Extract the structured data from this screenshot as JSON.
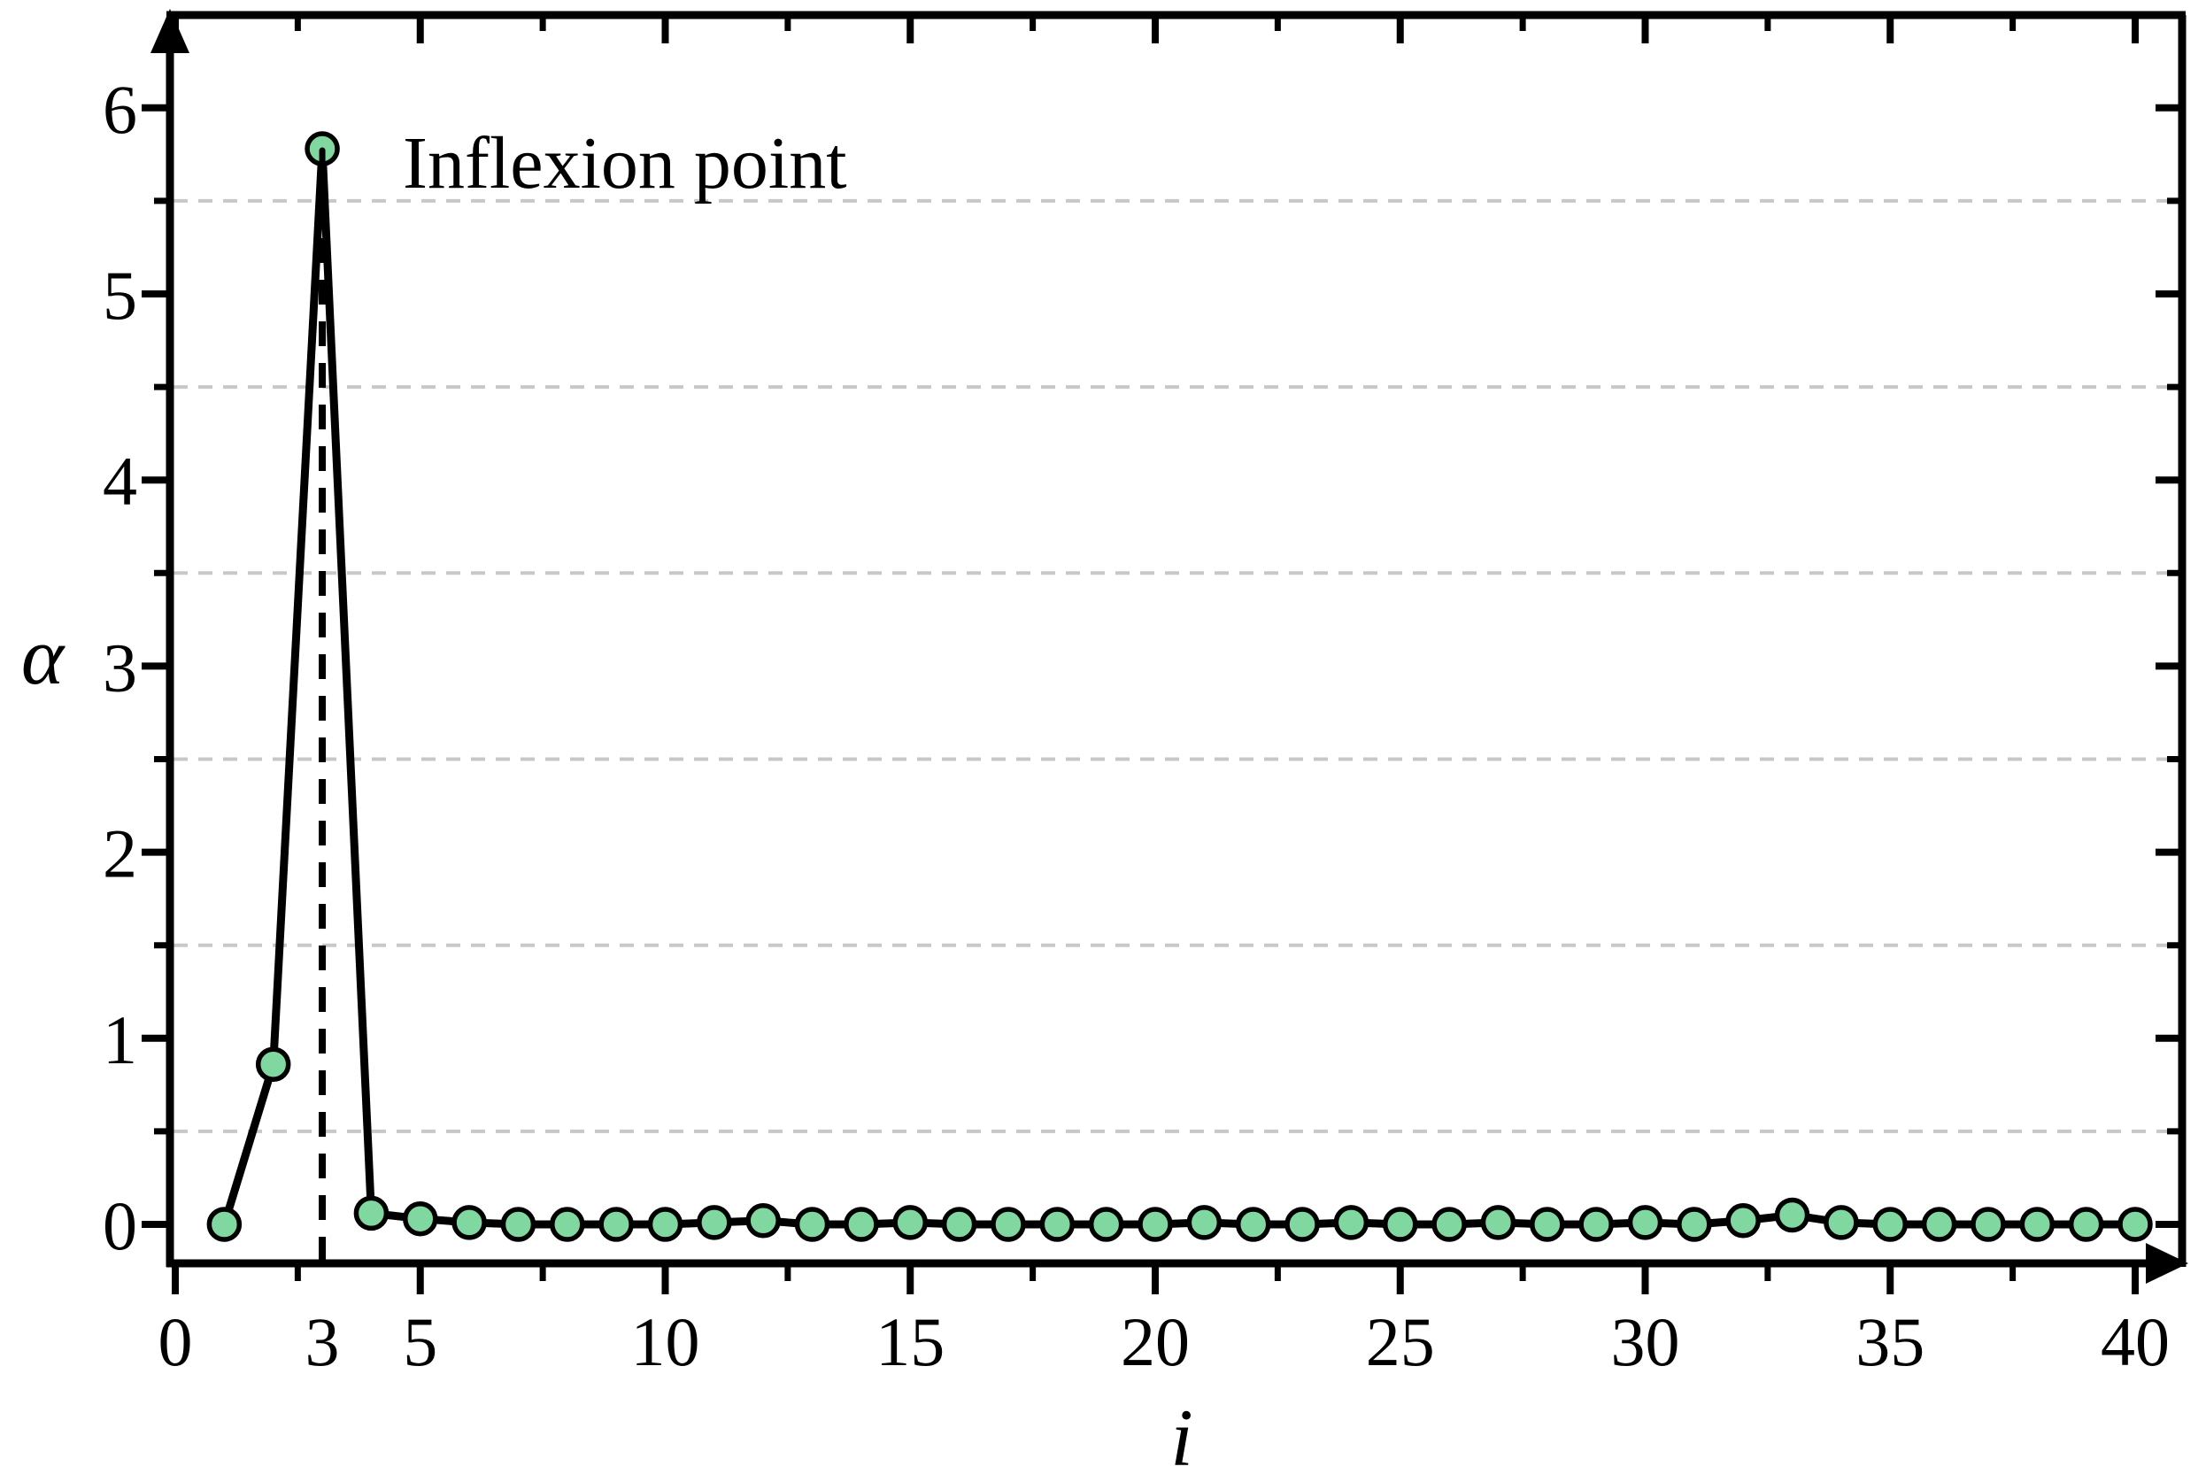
{
  "chart_data": {
    "type": "line",
    "title": "",
    "xlabel": "i",
    "ylabel": "α",
    "annotation": "Inflexion point",
    "x": [
      1,
      2,
      3,
      4,
      5,
      6,
      7,
      8,
      9,
      10,
      11,
      12,
      13,
      14,
      15,
      16,
      17,
      18,
      19,
      20,
      21,
      22,
      23,
      24,
      25,
      26,
      27,
      28,
      29,
      30,
      31,
      32,
      33,
      34,
      35,
      36,
      37,
      38,
      39,
      40
    ],
    "values": [
      0.0,
      0.86,
      5.78,
      0.06,
      0.03,
      0.01,
      0.0,
      0.0,
      0.0,
      0.0,
      0.01,
      0.02,
      0.0,
      0.0,
      0.01,
      0.0,
      0.0,
      0.0,
      0.0,
      0.0,
      0.01,
      0.0,
      0.0,
      0.01,
      0.0,
      0.0,
      0.01,
      0.0,
      0.0,
      0.01,
      0.0,
      0.02,
      0.05,
      0.01,
      0.0,
      0.0,
      0.0,
      0.0,
      0.0,
      0.0
    ],
    "xlim": [
      -0.11,
      40.96
    ],
    "ylim": [
      -0.21,
      6.5
    ],
    "x_major_ticks": [
      0,
      5,
      10,
      15,
      20,
      25,
      30,
      35,
      40
    ],
    "x_major_tick_labels": [
      "0",
      "5",
      "10",
      "15",
      "20",
      "25",
      "30",
      "35",
      "40"
    ],
    "x_extra_tick": {
      "x": 3,
      "label": "3"
    },
    "x_minor_ticks": [
      2.5,
      7.5,
      12.5,
      17.5,
      22.5,
      27.5,
      32.5,
      37.5
    ],
    "y_major_ticks": [
      0,
      1,
      2,
      3,
      4,
      5,
      6
    ],
    "y_major_tick_labels": [
      "0",
      "1",
      "2",
      "3",
      "4",
      "5",
      "6"
    ],
    "y_minor_ticks": [
      0.5,
      1.5,
      2.5,
      3.5,
      4.5,
      5.5
    ],
    "grid_y": [
      0.5,
      1.5,
      2.5,
      3.5,
      4.5,
      5.5
    ],
    "guide_x": 3,
    "peak": {
      "x": 3,
      "y": 5.78
    },
    "grid_style": "dashed",
    "legend": "none",
    "colors": {
      "marker_fill": "#80d8a0",
      "line": "#000000",
      "grid": "#c8c8c8",
      "axis": "#000000",
      "background": "#ffffff"
    }
  }
}
